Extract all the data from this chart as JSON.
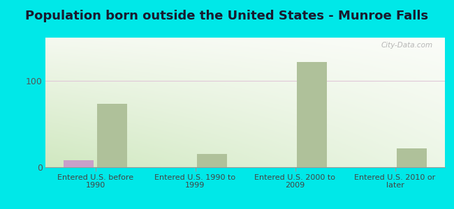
{
  "title": "Population born outside the United States - Munroe Falls",
  "categories": [
    "Entered U.S. before\n1990",
    "Entered U.S. 1990 to\n1999",
    "Entered U.S. 2000 to\n2009",
    "Entered U.S. 2010 or\nlater"
  ],
  "native_values": [
    8,
    0,
    0,
    0
  ],
  "foreign_values": [
    73,
    15,
    122,
    22
  ],
  "native_color": "#c9a0c9",
  "foreign_color": "#afc19a",
  "background_color": "#00e8e8",
  "plot_bg_top": "#f5f9f0",
  "plot_bg_bottom": "#d0e8c0",
  "grid_color": "#e0c8d8",
  "title_fontsize": 13,
  "bar_width": 0.3,
  "ylim": [
    0,
    150
  ],
  "yticks": [
    0,
    100
  ],
  "watermark": "City-Data.com"
}
